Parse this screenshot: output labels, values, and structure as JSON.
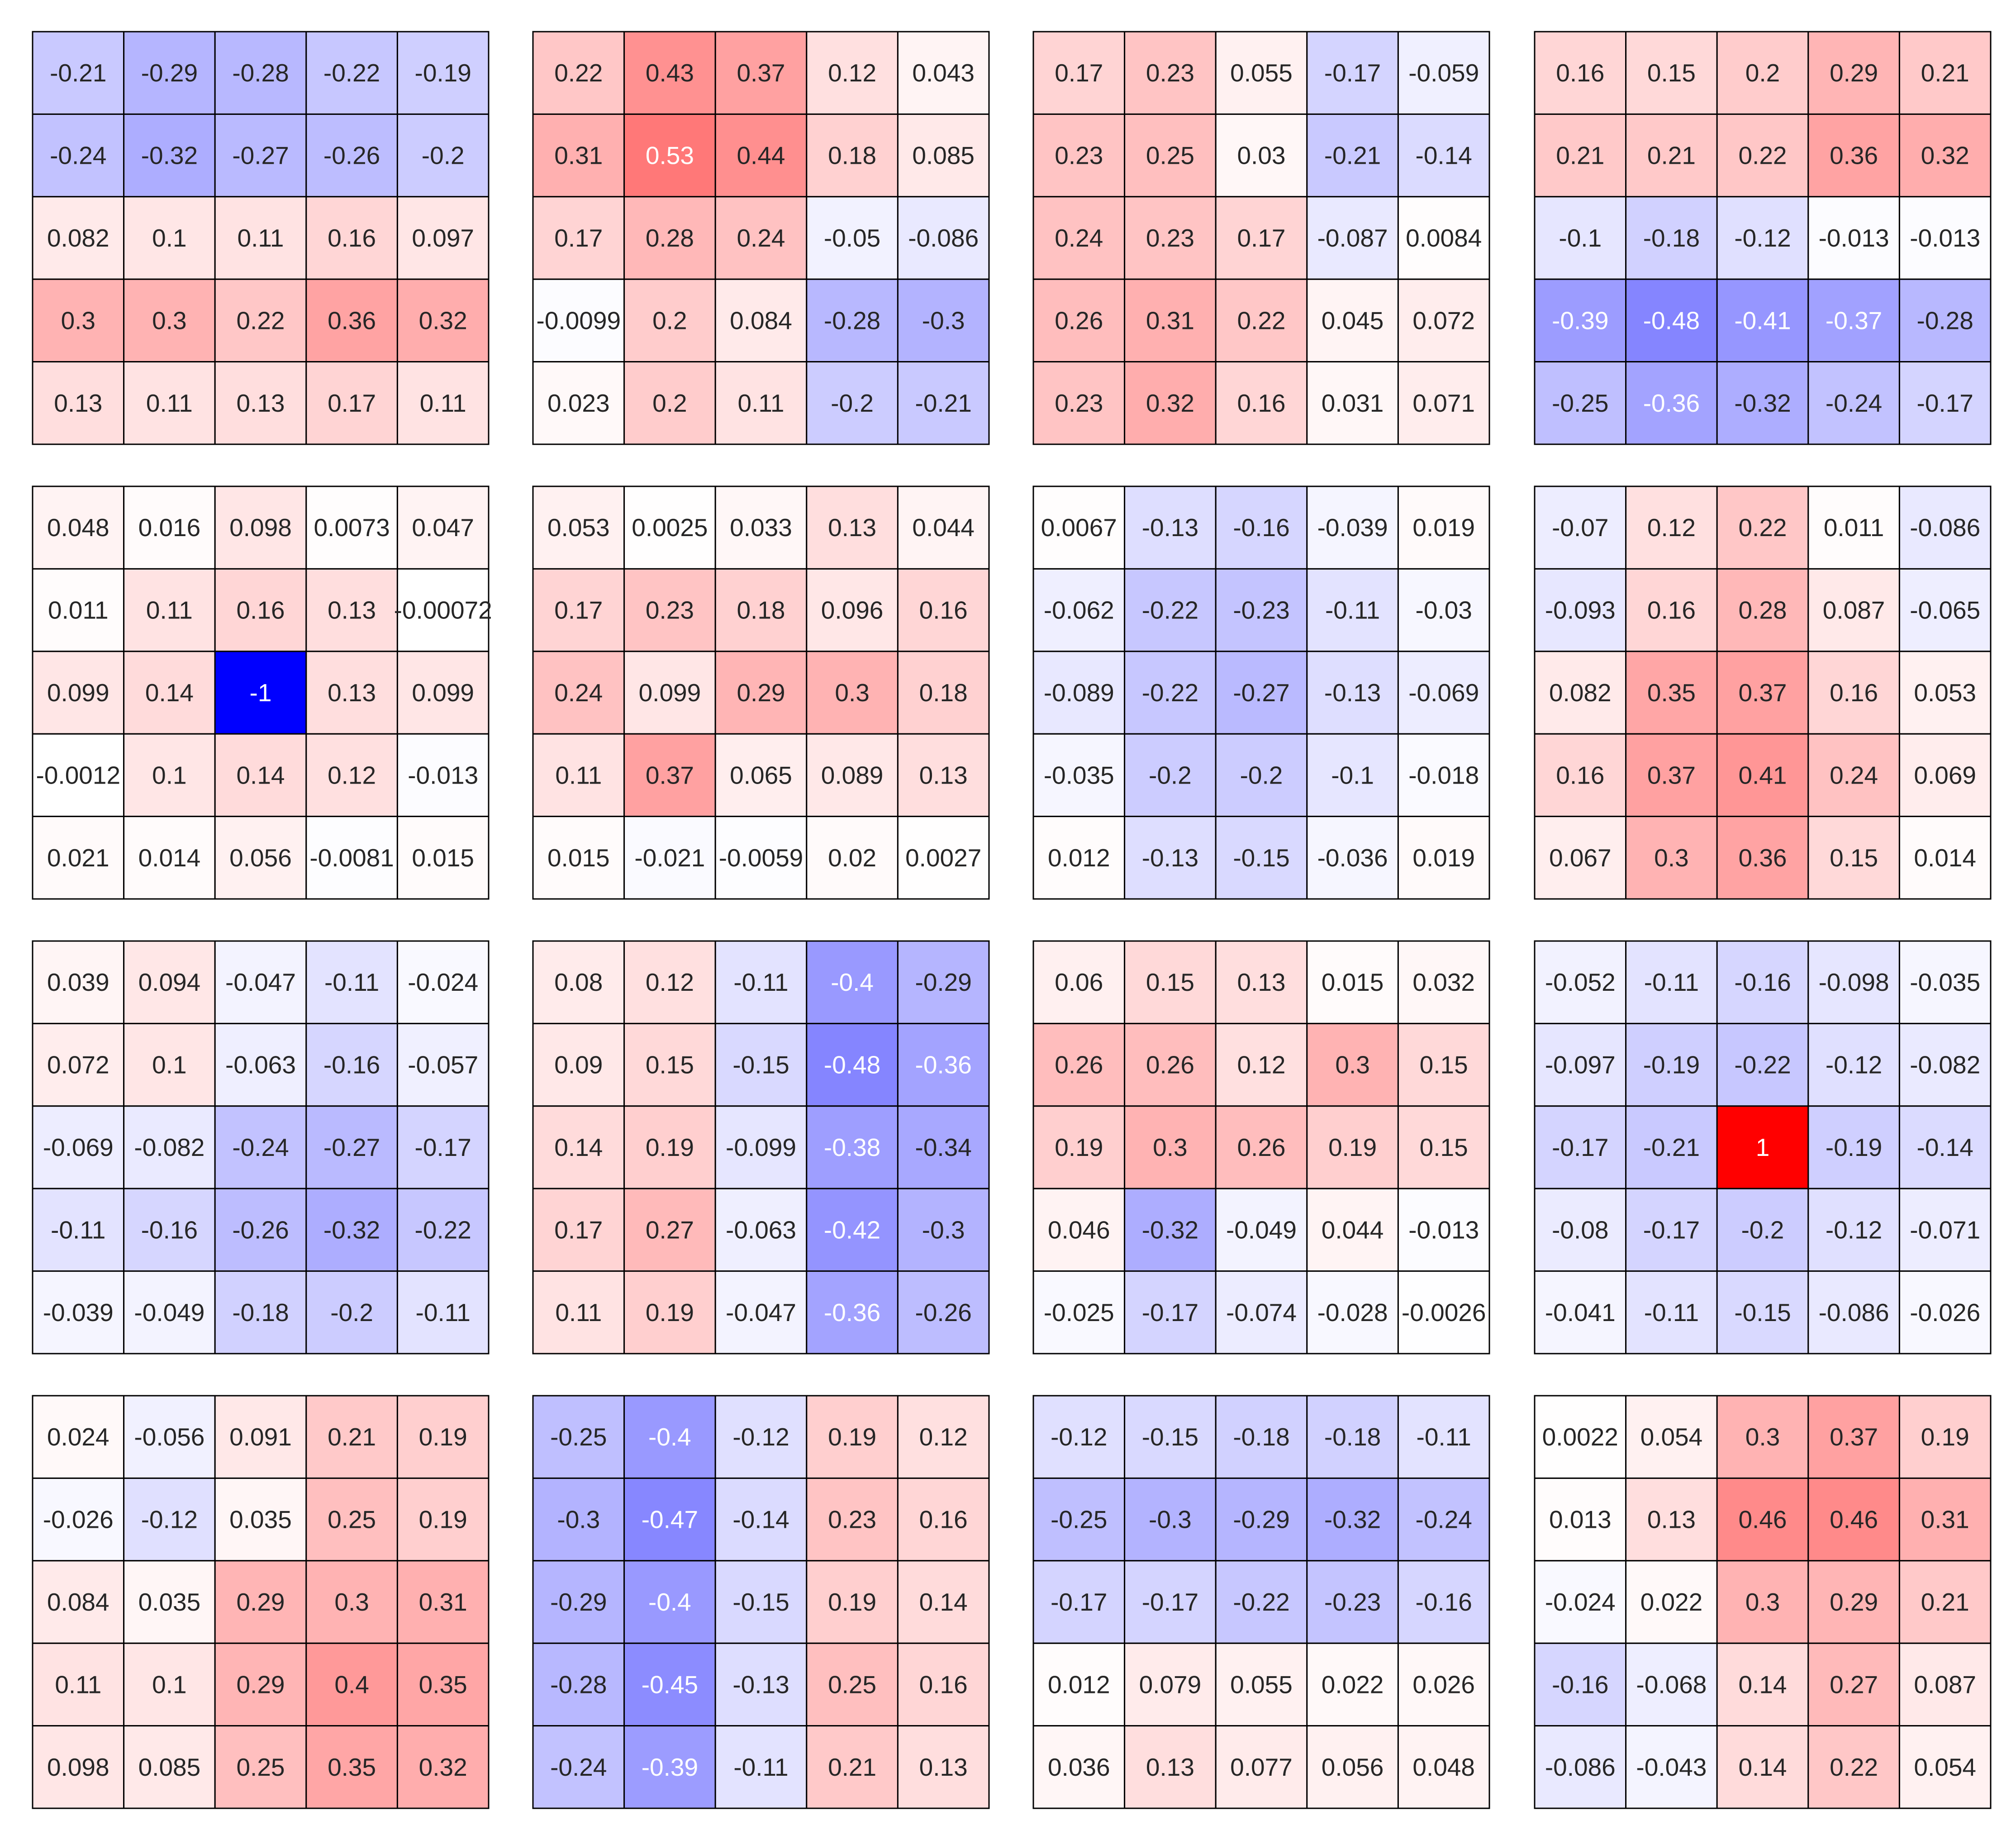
{
  "chart_data": [
    {
      "type": "heatmap",
      "values": [
        [
          "-0.21",
          "-0.29",
          "-0.28",
          "-0.22",
          "-0.19"
        ],
        [
          "-0.24",
          "-0.32",
          "-0.27",
          "-0.26",
          "-0.2"
        ],
        [
          "0.082",
          "0.1",
          "0.11",
          "0.16",
          "0.097"
        ],
        [
          "0.3",
          "0.3",
          "0.22",
          "0.36",
          "0.32"
        ],
        [
          "0.13",
          "0.11",
          "0.13",
          "0.17",
          "0.11"
        ]
      ]
    },
    {
      "type": "heatmap",
      "values": [
        [
          "0.22",
          "0.43",
          "0.37",
          "0.12",
          "0.043"
        ],
        [
          "0.31",
          "0.53",
          "0.44",
          "0.18",
          "0.085"
        ],
        [
          "0.17",
          "0.28",
          "0.24",
          "-0.05",
          "-0.086"
        ],
        [
          "-0.0099",
          "0.2",
          "0.084",
          "-0.28",
          "-0.3"
        ],
        [
          "0.023",
          "0.2",
          "0.11",
          "-0.2",
          "-0.21"
        ]
      ]
    },
    {
      "type": "heatmap",
      "values": [
        [
          "0.17",
          "0.23",
          "0.055",
          "-0.17",
          "-0.059"
        ],
        [
          "0.23",
          "0.25",
          "0.03",
          "-0.21",
          "-0.14"
        ],
        [
          "0.24",
          "0.23",
          "0.17",
          "-0.087",
          "0.0084"
        ],
        [
          "0.26",
          "0.31",
          "0.22",
          "0.045",
          "0.072"
        ],
        [
          "0.23",
          "0.32",
          "0.16",
          "0.031",
          "0.071"
        ]
      ]
    },
    {
      "type": "heatmap",
      "values": [
        [
          "0.16",
          "0.15",
          "0.2",
          "0.29",
          "0.21"
        ],
        [
          "0.21",
          "0.21",
          "0.22",
          "0.36",
          "0.32"
        ],
        [
          "-0.1",
          "-0.18",
          "-0.12",
          "-0.013",
          "-0.013"
        ],
        [
          "-0.39",
          "-0.48",
          "-0.41",
          "-0.37",
          "-0.28"
        ],
        [
          "-0.25",
          "-0.36",
          "-0.32",
          "-0.24",
          "-0.17"
        ]
      ]
    },
    {
      "type": "heatmap",
      "values": [
        [
          "0.048",
          "0.016",
          "0.098",
          "0.0073",
          "0.047"
        ],
        [
          "0.011",
          "0.11",
          "0.16",
          "0.13",
          "-0.00072"
        ],
        [
          "0.099",
          "0.14",
          "-1",
          "0.13",
          "0.099"
        ],
        [
          "-0.0012",
          "0.1",
          "0.14",
          "0.12",
          "-0.013"
        ],
        [
          "0.021",
          "0.014",
          "0.056",
          "-0.0081",
          "0.015"
        ]
      ]
    },
    {
      "type": "heatmap",
      "values": [
        [
          "0.053",
          "0.0025",
          "0.033",
          "0.13",
          "0.044"
        ],
        [
          "0.17",
          "0.23",
          "0.18",
          "0.096",
          "0.16"
        ],
        [
          "0.24",
          "0.099",
          "0.29",
          "0.3",
          "0.18"
        ],
        [
          "0.11",
          "0.37",
          "0.065",
          "0.089",
          "0.13"
        ],
        [
          "0.015",
          "-0.021",
          "-0.0059",
          "0.02",
          "0.0027"
        ]
      ]
    },
    {
      "type": "heatmap",
      "values": [
        [
          "0.0067",
          "-0.13",
          "-0.16",
          "-0.039",
          "0.019"
        ],
        [
          "-0.062",
          "-0.22",
          "-0.23",
          "-0.11",
          "-0.03"
        ],
        [
          "-0.089",
          "-0.22",
          "-0.27",
          "-0.13",
          "-0.069"
        ],
        [
          "-0.035",
          "-0.2",
          "-0.2",
          "-0.1",
          "-0.018"
        ],
        [
          "0.012",
          "-0.13",
          "-0.15",
          "-0.036",
          "0.019"
        ]
      ]
    },
    {
      "type": "heatmap",
      "values": [
        [
          "-0.07",
          "0.12",
          "0.22",
          "0.011",
          "-0.086"
        ],
        [
          "-0.093",
          "0.16",
          "0.28",
          "0.087",
          "-0.065"
        ],
        [
          "0.082",
          "0.35",
          "0.37",
          "0.16",
          "0.053"
        ],
        [
          "0.16",
          "0.37",
          "0.41",
          "0.24",
          "0.069"
        ],
        [
          "0.067",
          "0.3",
          "0.36",
          "0.15",
          "0.014"
        ]
      ]
    },
    {
      "type": "heatmap",
      "values": [
        [
          "0.039",
          "0.094",
          "-0.047",
          "-0.11",
          "-0.024"
        ],
        [
          "0.072",
          "0.1",
          "-0.063",
          "-0.16",
          "-0.057"
        ],
        [
          "-0.069",
          "-0.082",
          "-0.24",
          "-0.27",
          "-0.17"
        ],
        [
          "-0.11",
          "-0.16",
          "-0.26",
          "-0.32",
          "-0.22"
        ],
        [
          "-0.039",
          "-0.049",
          "-0.18",
          "-0.2",
          "-0.11"
        ]
      ]
    },
    {
      "type": "heatmap",
      "values": [
        [
          "0.08",
          "0.12",
          "-0.11",
          "-0.4",
          "-0.29"
        ],
        [
          "0.09",
          "0.15",
          "-0.15",
          "-0.48",
          "-0.36"
        ],
        [
          "0.14",
          "0.19",
          "-0.099",
          "-0.38",
          "-0.34"
        ],
        [
          "0.17",
          "0.27",
          "-0.063",
          "-0.42",
          "-0.3"
        ],
        [
          "0.11",
          "0.19",
          "-0.047",
          "-0.36",
          "-0.26"
        ]
      ]
    },
    {
      "type": "heatmap",
      "values": [
        [
          "0.06",
          "0.15",
          "0.13",
          "0.015",
          "0.032"
        ],
        [
          "0.26",
          "0.26",
          "0.12",
          "0.3",
          "0.15"
        ],
        [
          "0.19",
          "0.3",
          "0.26",
          "0.19",
          "0.15"
        ],
        [
          "0.046",
          "-0.32",
          "-0.049",
          "0.044",
          "-0.013"
        ],
        [
          "-0.025",
          "-0.17",
          "-0.074",
          "-0.028",
          "-0.0026"
        ]
      ]
    },
    {
      "type": "heatmap",
      "values": [
        [
          "-0.052",
          "-0.11",
          "-0.16",
          "-0.098",
          "-0.035"
        ],
        [
          "-0.097",
          "-0.19",
          "-0.22",
          "-0.12",
          "-0.082"
        ],
        [
          "-0.17",
          "-0.21",
          "1",
          "-0.19",
          "-0.14"
        ],
        [
          "-0.08",
          "-0.17",
          "-0.2",
          "-0.12",
          "-0.071"
        ],
        [
          "-0.041",
          "-0.11",
          "-0.15",
          "-0.086",
          "-0.026"
        ]
      ]
    },
    {
      "type": "heatmap",
      "values": [
        [
          "0.024",
          "-0.056",
          "0.091",
          "0.21",
          "0.19"
        ],
        [
          "-0.026",
          "-0.12",
          "0.035",
          "0.25",
          "0.19"
        ],
        [
          "0.084",
          "0.035",
          "0.29",
          "0.3",
          "0.31"
        ],
        [
          "0.11",
          "0.1",
          "0.29",
          "0.4",
          "0.35"
        ],
        [
          "0.098",
          "0.085",
          "0.25",
          "0.35",
          "0.32"
        ]
      ]
    },
    {
      "type": "heatmap",
      "values": [
        [
          "-0.25",
          "-0.4",
          "-0.12",
          "0.19",
          "0.12"
        ],
        [
          "-0.3",
          "-0.47",
          "-0.14",
          "0.23",
          "0.16"
        ],
        [
          "-0.29",
          "-0.4",
          "-0.15",
          "0.19",
          "0.14"
        ],
        [
          "-0.28",
          "-0.45",
          "-0.13",
          "0.25",
          "0.16"
        ],
        [
          "-0.24",
          "-0.39",
          "-0.11",
          "0.21",
          "0.13"
        ]
      ]
    },
    {
      "type": "heatmap",
      "values": [
        [
          "-0.12",
          "-0.15",
          "-0.18",
          "-0.18",
          "-0.11"
        ],
        [
          "-0.25",
          "-0.3",
          "-0.29",
          "-0.32",
          "-0.24"
        ],
        [
          "-0.17",
          "-0.17",
          "-0.22",
          "-0.23",
          "-0.16"
        ],
        [
          "0.012",
          "0.079",
          "0.055",
          "0.022",
          "0.026"
        ],
        [
          "0.036",
          "0.13",
          "0.077",
          "0.056",
          "0.048"
        ]
      ]
    },
    {
      "type": "heatmap",
      "values": [
        [
          "0.0022",
          "0.054",
          "0.3",
          "0.37",
          "0.19"
        ],
        [
          "0.013",
          "0.13",
          "0.46",
          "0.46",
          "0.31"
        ],
        [
          "-0.024",
          "0.022",
          "0.3",
          "0.29",
          "0.21"
        ],
        [
          "-0.16",
          "-0.068",
          "0.14",
          "0.27",
          "0.087"
        ],
        [
          "-0.086",
          "-0.043",
          "0.14",
          "0.22",
          "0.054"
        ]
      ]
    }
  ],
  "colors": {
    "negative": "#0000ff",
    "zero": "#ffffff",
    "positive": "#ff0000",
    "cell_border": "#000000"
  },
  "color_scale": {
    "vmin": -1,
    "vmax": 1
  }
}
